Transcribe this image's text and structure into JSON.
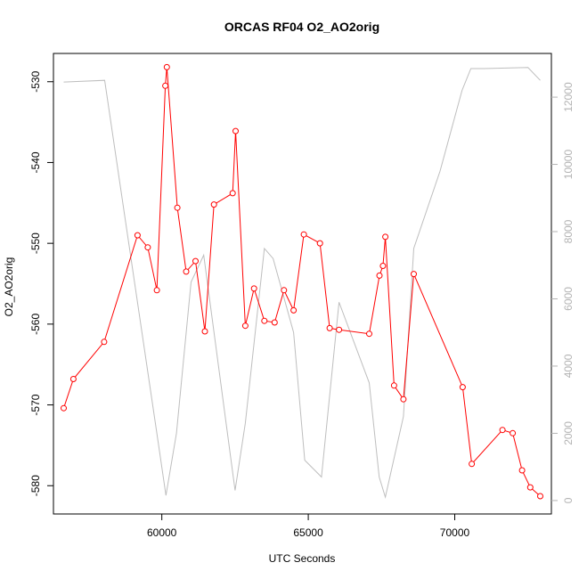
{
  "chart_data": {
    "type": "line",
    "title": "ORCAS RF04 O2_AO2orig",
    "xlabel": "UTC Seconds",
    "ylabel": "O2_AO2orig",
    "y2label": "",
    "xlim": [
      56300,
      73300
    ],
    "ylim": [
      -583.5,
      -526.5
    ],
    "y2lim": [
      -400,
      13300
    ],
    "x_ticks": [
      60000,
      65000,
      70000
    ],
    "y_ticks": [
      -580,
      -570,
      -560,
      -550,
      -540,
      -530
    ],
    "y2_ticks": [
      0,
      2000,
      4000,
      6000,
      8000,
      10000,
      12000
    ],
    "grid": false,
    "legend": "none",
    "colors": {
      "primary": "#ff0000",
      "secondary": "#bebebe",
      "axis": "#000000",
      "secondary_axis": "#b3b3b3"
    },
    "series": [
      {
        "axis": "left",
        "style": "line+circles",
        "color": "#ff0000",
        "x": [
          56650,
          56980,
          58030,
          59170,
          59520,
          59830,
          60120,
          60170,
          60530,
          60830,
          61150,
          61470,
          61780,
          62420,
          62520,
          62850,
          63150,
          63500,
          63850,
          64170,
          64500,
          64850,
          65400,
          65730,
          66050,
          67080,
          67430,
          67550,
          67630,
          67930,
          68250,
          68600,
          70270,
          70580,
          71630,
          71980,
          72300,
          72580,
          72920
        ],
        "y": [
          -570.4,
          -566.8,
          -562.2,
          -549.0,
          -550.5,
          -555.8,
          -530.5,
          -528.2,
          -545.6,
          -553.5,
          -552.2,
          -560.9,
          -545.2,
          -543.8,
          -536.1,
          -560.2,
          -555.6,
          -559.6,
          -559.8,
          -555.8,
          -558.3,
          -548.9,
          -550.0,
          -560.5,
          -560.7,
          -561.2,
          -554.0,
          -552.8,
          -549.2,
          -567.6,
          -569.3,
          -553.8,
          -567.8,
          -577.3,
          -573.1,
          -573.5,
          -578.1,
          -580.2,
          -581.3
        ]
      },
      {
        "axis": "right",
        "style": "line",
        "color": "#bebebe",
        "x": [
          56650,
          58050,
          59830,
          60140,
          60500,
          61000,
          61430,
          62500,
          62850,
          63500,
          63800,
          64500,
          64880,
          65450,
          66050,
          67080,
          67420,
          67630,
          68250,
          68600,
          69500,
          70250,
          70550,
          71000,
          72500,
          72920
        ],
        "y": [
          12450,
          12500,
          2000,
          150,
          2000,
          6500,
          7300,
          300,
          2300,
          7500,
          7200,
          5000,
          1200,
          700,
          5900,
          3500,
          700,
          100,
          2500,
          7500,
          9800,
          12200,
          12850,
          12850,
          12880,
          12500
        ]
      }
    ]
  }
}
